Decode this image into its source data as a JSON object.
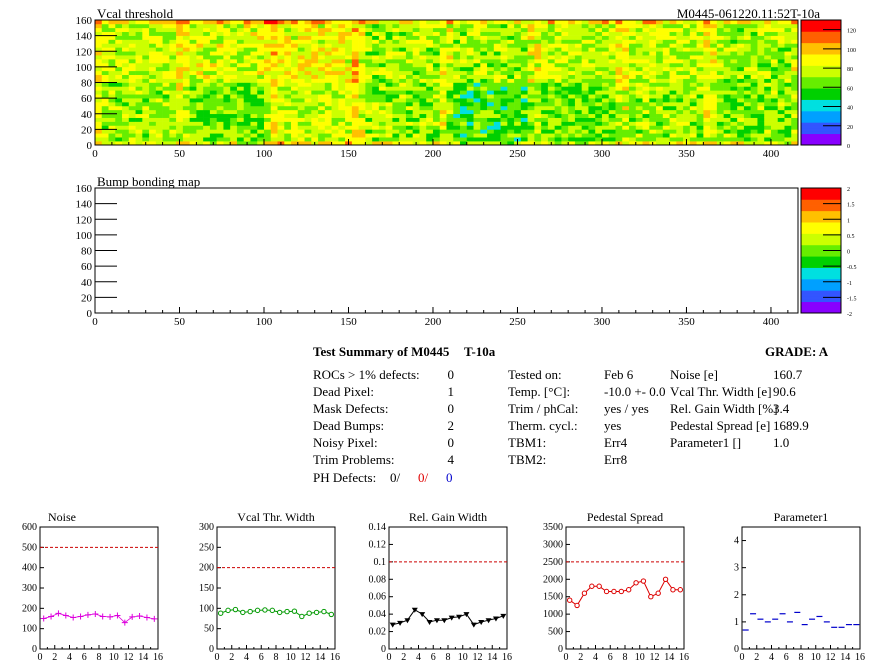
{
  "header": {
    "title_left": "Vcal threshold",
    "title_right": "M0445-061220.11:52T-10a",
    "bump_title": "Bump bonding map"
  },
  "colors": {
    "palette": [
      "#8800ff",
      "#3355ff",
      "#00a0ff",
      "#00e0e0",
      "#00d000",
      "#66ee00",
      "#ccff00",
      "#ffff00",
      "#ffc000",
      "#ff6000",
      "#ff0000"
    ],
    "threshold": "#cc0000"
  },
  "chart_data": [
    {
      "type": "heatmap",
      "title": "Vcal threshold",
      "xlim": [
        0,
        416
      ],
      "ylim": [
        0,
        160
      ],
      "xticks": [
        0,
        50,
        100,
        150,
        200,
        250,
        300,
        350,
        400
      ],
      "yticks": [
        0,
        20,
        40,
        60,
        80,
        100,
        120,
        140,
        160
      ],
      "zlim": [
        0,
        130
      ],
      "zticks": [
        0,
        20,
        40,
        60,
        80,
        100,
        120
      ],
      "columns": 8,
      "rows": 2,
      "roc_layout": "2 rows x 8 ROCs"
    },
    {
      "type": "heatmap",
      "title": "Bump bonding map",
      "xlim": [
        0,
        416
      ],
      "ylim": [
        0,
        160
      ],
      "xticks": [
        0,
        50,
        100,
        150,
        200,
        250,
        300,
        350,
        400
      ],
      "yticks": [
        0,
        20,
        40,
        60,
        80,
        100,
        120,
        140,
        160
      ],
      "zlim": [
        -2,
        2
      ],
      "zticks": [
        -2,
        -1.5,
        -1,
        -0.5,
        0,
        0.5,
        1,
        1.5,
        2
      ]
    },
    {
      "type": "scatter",
      "title": "Noise",
      "x": [
        0,
        1,
        2,
        3,
        4,
        5,
        6,
        7,
        8,
        9,
        10,
        11,
        12,
        13,
        14,
        15
      ],
      "y": [
        150,
        160,
        175,
        165,
        155,
        160,
        168,
        172,
        160,
        158,
        165,
        130,
        158,
        162,
        155,
        148
      ],
      "xlim": [
        0,
        16
      ],
      "ylim": [
        0,
        600
      ],
      "yticks": [
        0,
        100,
        200,
        300,
        400,
        500,
        600
      ],
      "threshold": 500,
      "color": "#dd00dd",
      "marker": "plus"
    },
    {
      "type": "line",
      "title": "Vcal Thr. Width",
      "x": [
        0,
        1,
        2,
        3,
        4,
        5,
        6,
        7,
        8,
        9,
        10,
        11,
        12,
        13,
        14,
        15
      ],
      "y": [
        88,
        95,
        97,
        90,
        92,
        95,
        96,
        95,
        90,
        92,
        93,
        80,
        88,
        90,
        92,
        85
      ],
      "xlim": [
        0,
        16
      ],
      "ylim": [
        0,
        300
      ],
      "yticks": [
        0,
        50,
        100,
        150,
        200,
        250,
        300
      ],
      "threshold": 200,
      "color": "#009900",
      "marker": "circle"
    },
    {
      "type": "line",
      "title": "Rel. Gain Width",
      "x": [
        0,
        1,
        2,
        3,
        4,
        5,
        6,
        7,
        8,
        9,
        10,
        11,
        12,
        13,
        14,
        15
      ],
      "y": [
        0.028,
        0.03,
        0.033,
        0.045,
        0.04,
        0.031,
        0.033,
        0.033,
        0.036,
        0.037,
        0.04,
        0.028,
        0.031,
        0.033,
        0.035,
        0.038
      ],
      "xlim": [
        0,
        16
      ],
      "ylim": [
        0,
        0.14
      ],
      "yticks": [
        0,
        0.02,
        0.04,
        0.06,
        0.08,
        0.1,
        0.12,
        0.14
      ],
      "threshold": 0.1,
      "color": "#000000",
      "marker": "triangle-down"
    },
    {
      "type": "line",
      "title": "Pedestal Spread",
      "x": [
        0,
        1,
        2,
        3,
        4,
        5,
        6,
        7,
        8,
        9,
        10,
        11,
        12,
        13,
        14,
        15
      ],
      "y": [
        1400,
        1250,
        1600,
        1800,
        1800,
        1650,
        1650,
        1650,
        1700,
        1900,
        1950,
        1500,
        1600,
        2000,
        1700,
        1700
      ],
      "xlim": [
        0,
        16
      ],
      "ylim": [
        0,
        3500
      ],
      "yticks": [
        0,
        500,
        1000,
        1500,
        2000,
        2500,
        3000,
        3500
      ],
      "threshold": 2500,
      "color": "#dd0000",
      "marker": "circle"
    },
    {
      "type": "scatter",
      "title": "Parameter1",
      "x": [
        0,
        1,
        2,
        3,
        4,
        5,
        6,
        7,
        8,
        9,
        10,
        11,
        12,
        13,
        14,
        15
      ],
      "y": [
        0.7,
        1.3,
        1.1,
        1.0,
        1.1,
        1.3,
        1.0,
        1.35,
        0.9,
        1.1,
        1.2,
        1.0,
        0.8,
        0.8,
        0.9,
        0.9
      ],
      "xlim": [
        0,
        16
      ],
      "ylim": [
        0,
        4.5
      ],
      "yticks": [
        0,
        1,
        2,
        3,
        4
      ],
      "color": "#0000cc",
      "marker": "dash"
    }
  ],
  "summary": {
    "title": "Test Summary of M0445",
    "temp_code": "T-10a",
    "grade_label": "GRADE:  A",
    "rows": [
      {
        "label": "ROCs > 1% defects:",
        "value": "0"
      },
      {
        "label": "Dead Pixel:",
        "value": "1"
      },
      {
        "label": "Mask Defects:",
        "value": "0"
      },
      {
        "label": "Dead Bumps:",
        "value": "2"
      },
      {
        "label": "Noisy Pixel:",
        "value": "0"
      },
      {
        "label": "Trim Problems:",
        "value": "4"
      }
    ],
    "ph_label": "PH Defects:",
    "ph_values": [
      "0/",
      "0/",
      "0"
    ],
    "test_rows": [
      {
        "label": "Tested on:",
        "value": "Feb 6"
      },
      {
        "label": "Temp. [°C]:",
        "value": "-10.0 +- 0.0"
      },
      {
        "label": "Trim / phCal:",
        "value": "yes / yes"
      },
      {
        "label": "Therm. cycl.:",
        "value": "yes"
      },
      {
        "label": "TBM1:",
        "value": "Err4"
      },
      {
        "label": "TBM2:",
        "value": "Err8"
      }
    ],
    "param_rows": [
      {
        "label": "Noise [e]",
        "value": "160.7"
      },
      {
        "label": "Vcal Thr. Width [e]",
        "value": "90.6"
      },
      {
        "label": "Rel. Gain Width [%]",
        "value": "3.4"
      },
      {
        "label": "Pedestal Spread [e]",
        "value": "1689.9"
      },
      {
        "label": "Parameter1 []",
        "value": "1.0"
      }
    ]
  }
}
